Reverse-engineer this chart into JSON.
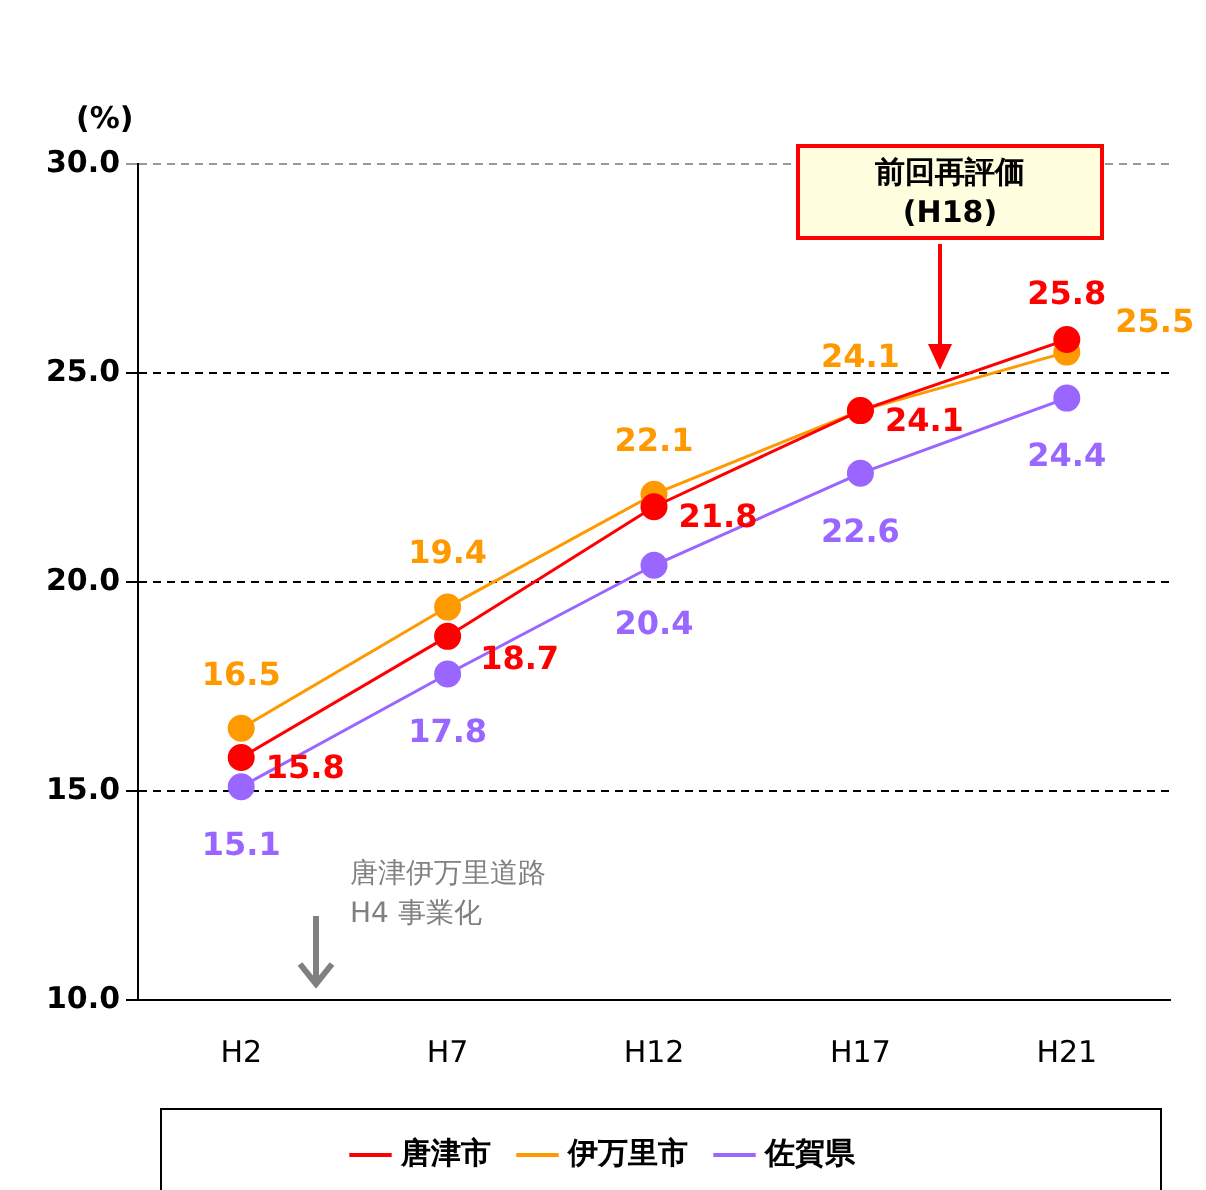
{
  "chart_data": {
    "type": "line",
    "ylabel": "(%)",
    "categories": [
      "H2",
      "H7",
      "H12",
      "H17",
      "H21"
    ],
    "series": [
      {
        "name": "唐津市",
        "color": "#ff0000",
        "values": [
          15.8,
          18.7,
          21.8,
          24.1,
          25.8
        ]
      },
      {
        "name": "伊万里市",
        "color": "#ff9900",
        "values": [
          16.5,
          19.4,
          22.1,
          24.1,
          25.5
        ]
      },
      {
        "name": "佐賀県",
        "color": "#9966ff",
        "values": [
          15.1,
          17.8,
          20.4,
          22.6,
          24.4
        ]
      }
    ],
    "ylim": [
      10,
      30
    ],
    "yticks": [
      {
        "value": 10,
        "label": "10.0"
      },
      {
        "value": 15,
        "label": "15.0"
      },
      {
        "value": 20,
        "label": "20.0"
      },
      {
        "value": 25,
        "label": "25.0"
      },
      {
        "value": 30,
        "label": "30.0"
      }
    ],
    "grid": "y",
    "legend": "bottom",
    "marker": "circle",
    "line_style": "solid",
    "data_labels": true,
    "annotations": [
      "前回再評価\n(H18)",
      "唐津伊万里道路\nH4 事業化"
    ]
  }
}
